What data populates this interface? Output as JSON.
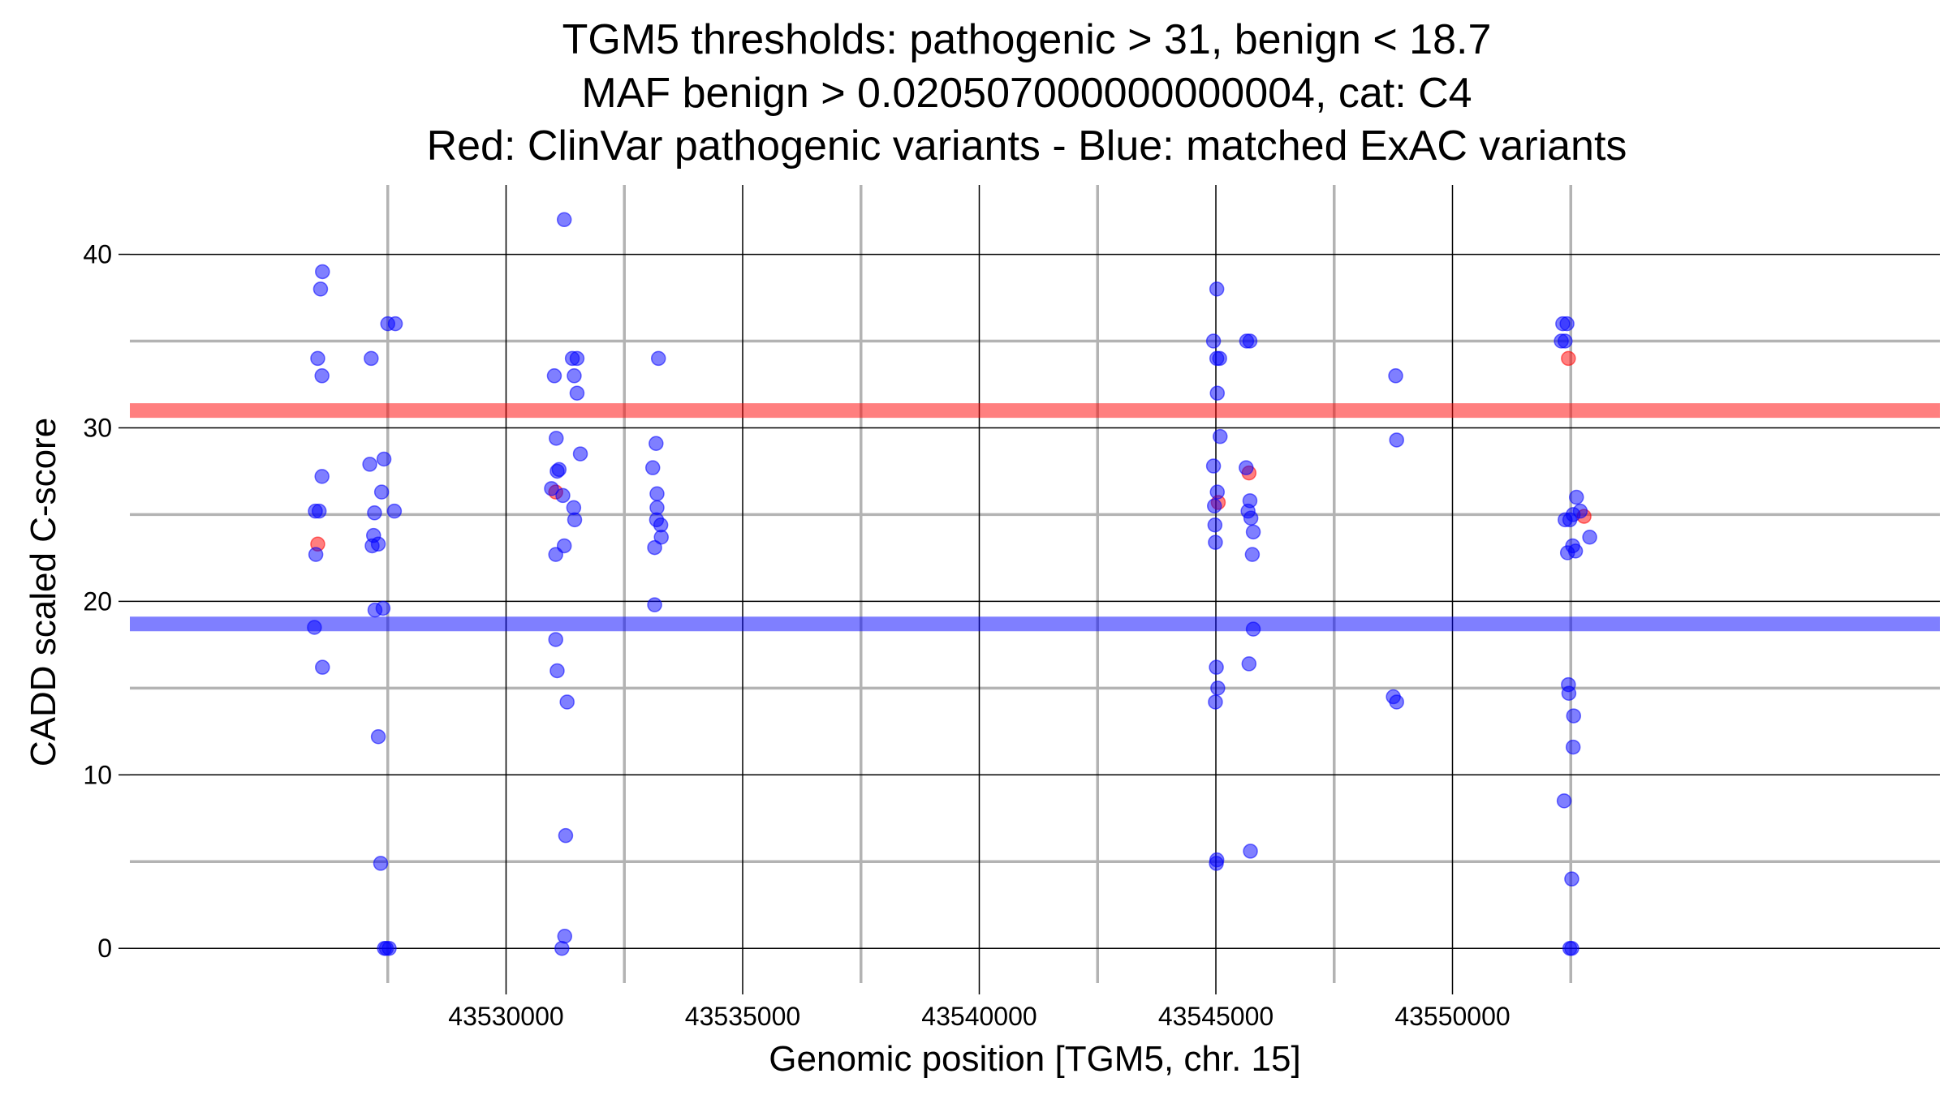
{
  "chart_data": {
    "type": "scatter",
    "title": [
      "TGM5 thresholds: pathogenic > 31, benign < 18.7",
      "MAF benign > 0.020507000000000004, cat: C4",
      "Red: ClinVar pathogenic variants - Blue: matched ExAC variants"
    ],
    "xlabel": "Genomic position [TGM5, chr. 15]",
    "ylabel": "CADD scaled C-score",
    "xlim": [
      43522050,
      43560300
    ],
    "ylim": [
      -2,
      44
    ],
    "x_major_ticks": [
      43530000,
      43535000,
      43540000,
      43545000,
      43550000
    ],
    "x_tick_labels": [
      "43530000",
      "43535000",
      "43540000",
      "43545000",
      "43550000"
    ],
    "x_minor_gridlines": [
      43527500,
      43532500,
      43537500,
      43542500,
      43547500,
      43552500
    ],
    "y_major_ticks": [
      0,
      10,
      20,
      30,
      40
    ],
    "y_tick_labels": [
      "0",
      "10",
      "20",
      "30",
      "40"
    ],
    "y_minor_gridlines": [
      5,
      15,
      25,
      35
    ],
    "grid": true,
    "thresholds": [
      {
        "name": "pathogenic",
        "value": 31,
        "color": "#ff0000"
      },
      {
        "name": "benign",
        "value": 18.7,
        "color": "#0000ff"
      }
    ],
    "colors": {
      "pathogenic": "#ff0000",
      "benign": "#0000ff"
    },
    "series": [
      {
        "key": "pathogenic",
        "points": [
          [
            43526020,
            23.3
          ],
          [
            43531050,
            26.3
          ],
          [
            43545050,
            25.7
          ],
          [
            43545700,
            27.4
          ],
          [
            43552450,
            34.0
          ],
          [
            43552780,
            24.9
          ]
        ]
      },
      {
        "key": "benign",
        "points": [
          [
            43526120,
            39.0
          ],
          [
            43526080,
            38.0
          ],
          [
            43526020,
            34.0
          ],
          [
            43526110,
            33.0
          ],
          [
            43526110,
            27.2
          ],
          [
            43525970,
            25.2
          ],
          [
            43526050,
            25.2
          ],
          [
            43525980,
            22.7
          ],
          [
            43525950,
            18.5
          ],
          [
            43526120,
            16.2
          ],
          [
            43527500,
            36.0
          ],
          [
            43527660,
            36.0
          ],
          [
            43527150,
            34.0
          ],
          [
            43527120,
            27.9
          ],
          [
            43527420,
            28.2
          ],
          [
            43527370,
            26.3
          ],
          [
            43527220,
            25.1
          ],
          [
            43527640,
            25.2
          ],
          [
            43527200,
            23.8
          ],
          [
            43527170,
            23.2
          ],
          [
            43527300,
            23.3
          ],
          [
            43527230,
            19.5
          ],
          [
            43527400,
            19.6
          ],
          [
            43527300,
            12.2
          ],
          [
            43527350,
            4.9
          ],
          [
            43527430,
            0.0
          ],
          [
            43527470,
            0.0
          ],
          [
            43527530,
            0.0
          ],
          [
            43531230,
            42.0
          ],
          [
            43531060,
            29.4
          ],
          [
            43531080,
            27.5
          ],
          [
            43531120,
            27.6
          ],
          [
            43530960,
            26.5
          ],
          [
            43531200,
            26.1
          ],
          [
            43531430,
            25.4
          ],
          [
            43531450,
            24.7
          ],
          [
            43531230,
            23.2
          ],
          [
            43531050,
            22.7
          ],
          [
            43531050,
            17.8
          ],
          [
            43531080,
            16.0
          ],
          [
            43531290,
            14.2
          ],
          [
            43531260,
            6.5
          ],
          [
            43531240,
            0.7
          ],
          [
            43531180,
            0.0
          ],
          [
            43531400,
            34.0
          ],
          [
            43531500,
            34.0
          ],
          [
            43531440,
            33.0
          ],
          [
            43531500,
            32.0
          ],
          [
            43531020,
            33.0
          ],
          [
            43531570,
            28.5
          ],
          [
            43533220,
            34.0
          ],
          [
            43533170,
            29.1
          ],
          [
            43533100,
            27.7
          ],
          [
            43533190,
            26.2
          ],
          [
            43533190,
            25.4
          ],
          [
            43533180,
            24.7
          ],
          [
            43533270,
            24.4
          ],
          [
            43533280,
            23.7
          ],
          [
            43533140,
            23.1
          ],
          [
            43533140,
            19.8
          ],
          [
            43544950,
            35.0
          ],
          [
            43545020,
            38.0
          ],
          [
            43545020,
            34.0
          ],
          [
            43545080,
            34.0
          ],
          [
            43545030,
            32.0
          ],
          [
            43545090,
            29.5
          ],
          [
            43544950,
            27.8
          ],
          [
            43545030,
            26.3
          ],
          [
            43544970,
            25.5
          ],
          [
            43544980,
            24.4
          ],
          [
            43544990,
            23.4
          ],
          [
            43545010,
            16.2
          ],
          [
            43545040,
            15.0
          ],
          [
            43544990,
            14.2
          ],
          [
            43545020,
            5.1
          ],
          [
            43545010,
            4.9
          ],
          [
            43545650,
            35.0
          ],
          [
            43545720,
            35.0
          ],
          [
            43545640,
            27.7
          ],
          [
            43545720,
            25.8
          ],
          [
            43545680,
            25.2
          ],
          [
            43545740,
            24.8
          ],
          [
            43545790,
            24.0
          ],
          [
            43545770,
            22.7
          ],
          [
            43545790,
            18.4
          ],
          [
            43545700,
            16.4
          ],
          [
            43545730,
            5.6
          ],
          [
            43548800,
            33.0
          ],
          [
            43548820,
            29.3
          ],
          [
            43548750,
            14.5
          ],
          [
            43548820,
            14.2
          ],
          [
            43552330,
            36.0
          ],
          [
            43552420,
            36.0
          ],
          [
            43552300,
            35.0
          ],
          [
            43552380,
            35.0
          ],
          [
            43552620,
            26.0
          ],
          [
            43552700,
            25.2
          ],
          [
            43552550,
            25.0
          ],
          [
            43552380,
            24.7
          ],
          [
            43552480,
            24.7
          ],
          [
            43552900,
            23.7
          ],
          [
            43552540,
            23.2
          ],
          [
            43552600,
            22.9
          ],
          [
            43552430,
            22.8
          ],
          [
            43552450,
            15.2
          ],
          [
            43552460,
            14.7
          ],
          [
            43552560,
            13.4
          ],
          [
            43552550,
            11.6
          ],
          [
            43552360,
            8.5
          ],
          [
            43552520,
            4.0
          ],
          [
            43552480,
            0.0
          ],
          [
            43552520,
            0.0
          ]
        ]
      }
    ]
  }
}
